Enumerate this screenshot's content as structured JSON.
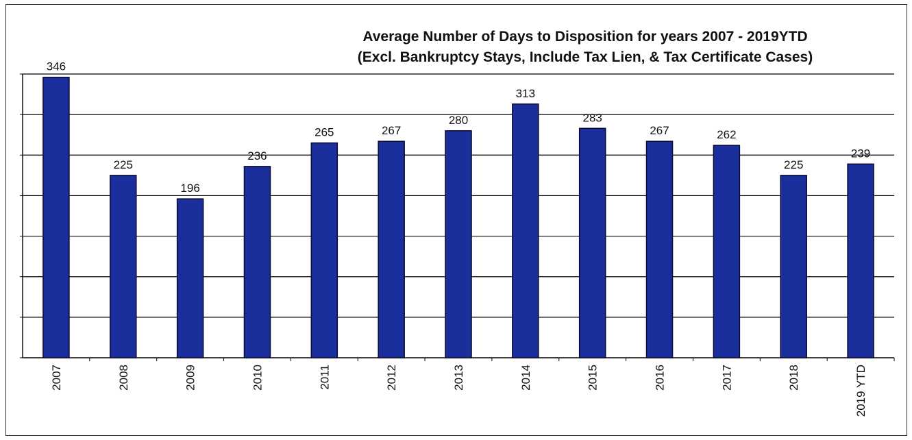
{
  "chart_data": {
    "type": "bar",
    "title": "Average Number of Days to Disposition  for years 2007  - 2019YTD",
    "subtitle": "(Excl. Bankruptcy Stays, Include Tax Lien, & Tax Certificate Cases)",
    "xlabel": "",
    "ylabel": "",
    "categories": [
      "2007",
      "2008",
      "2009",
      "2010",
      "2011",
      "2012",
      "2013",
      "2014",
      "2015",
      "2016",
      "2017",
      "2018",
      "2019 YTD"
    ],
    "values": [
      346,
      225,
      196,
      236,
      265,
      267,
      280,
      313,
      283,
      267,
      262,
      225,
      239
    ],
    "data_labels": [
      "346",
      "225",
      "196",
      "236",
      "265",
      "267",
      "280",
      "313",
      "283",
      "267",
      "262",
      "225",
      "239"
    ],
    "ylim": [
      0,
      350
    ],
    "grid": true,
    "legend": "none",
    "colors": {
      "bar": "#1a2f9c",
      "bar_edge": "#0a0a30",
      "grid": "#000000",
      "text": "#111111"
    }
  }
}
